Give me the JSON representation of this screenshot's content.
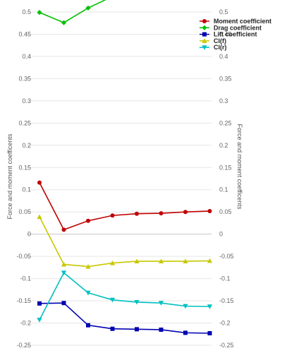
{
  "chart_data": {
    "type": "line",
    "ylabel_left": "Force and moment coefficents",
    "ylabel_right": "Force and moment coefficents",
    "ylim": [
      -0.25,
      0.5
    ],
    "yticks": [
      0.5,
      0.45,
      0.4,
      0.35,
      0.3,
      0.25,
      0.2,
      0.15,
      0.1,
      0.05,
      0,
      -0.05,
      -0.1,
      -0.15,
      -0.2,
      -0.25
    ],
    "ytick_labels": [
      "0.5",
      "0.45",
      "0.4",
      "0.35",
      "0.3",
      "0.25",
      "0.2",
      "0.15",
      "0.1",
      "0.05",
      "0",
      "-0.05",
      "-0.1",
      "-0.15",
      "-0.2",
      "-0.25"
    ],
    "grid": true,
    "legend_position": "top-right",
    "series": [
      {
        "name": "Moment coefficient",
        "color": "#c00000",
        "marker": "circle",
        "values": [
          0.116,
          0.01,
          0.03,
          0.042,
          0.046,
          0.047,
          0.05,
          0.052
        ]
      },
      {
        "name": "Drag coefficient",
        "color": "#00c000",
        "marker": "diamond",
        "values": [
          0.499,
          0.476,
          0.509,
          0.535,
          null,
          null,
          null,
          null
        ]
      },
      {
        "name": "Lift coefficient",
        "color": "#0000b0",
        "marker": "square",
        "values": [
          -0.156,
          -0.155,
          -0.205,
          -0.213,
          -0.214,
          -0.215,
          -0.222,
          -0.223
        ]
      },
      {
        "name": "Cl(f)",
        "color": "#c8c800",
        "marker": "triangle-up",
        "values": [
          0.039,
          -0.068,
          -0.073,
          -0.065,
          -0.061,
          -0.061,
          -0.061,
          -0.06
        ]
      },
      {
        "name": "Cl(r)",
        "color": "#00c0c0",
        "marker": "triangle-down",
        "values": [
          -0.193,
          -0.087,
          -0.132,
          -0.148,
          -0.153,
          -0.155,
          -0.162,
          -0.163
        ]
      }
    ]
  }
}
